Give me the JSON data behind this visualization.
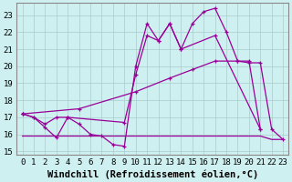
{
  "background_color": "#cff0f0",
  "grid_color": "#aacccc",
  "line_color": "#990099",
  "xlabel": "Windchill (Refroidissement éolien,°C)",
  "xlim_min": -0.5,
  "xlim_max": 23.5,
  "ylim_min": 14.8,
  "ylim_max": 23.7,
  "yticks": [
    15,
    16,
    17,
    18,
    19,
    20,
    21,
    22,
    23
  ],
  "xticks": [
    0,
    1,
    2,
    3,
    4,
    5,
    6,
    7,
    8,
    9,
    10,
    11,
    12,
    13,
    14,
    15,
    16,
    17,
    18,
    19,
    20,
    21,
    22,
    23
  ],
  "series1_x": [
    0,
    1,
    2,
    3,
    4,
    5,
    6,
    7,
    8,
    9,
    10,
    11,
    12,
    13,
    14,
    15,
    16,
    17,
    18,
    19,
    20,
    21
  ],
  "series1_y": [
    17.2,
    17.0,
    16.4,
    15.8,
    17.0,
    16.6,
    16.0,
    15.9,
    15.4,
    15.3,
    20.0,
    22.5,
    21.5,
    22.5,
    21.0,
    22.5,
    23.2,
    23.4,
    22.0,
    20.3,
    20.3,
    16.3
  ],
  "series2_x": [
    0,
    1,
    2,
    3,
    4,
    9,
    10,
    11,
    12,
    13,
    14,
    17,
    21
  ],
  "series2_y": [
    17.2,
    17.0,
    16.6,
    17.0,
    17.0,
    16.7,
    19.5,
    21.8,
    21.5,
    22.5,
    21.0,
    21.8,
    16.3
  ],
  "series3_x": [
    0,
    1,
    2,
    3,
    4,
    5,
    6,
    7,
    8,
    9,
    10,
    11,
    12,
    13,
    14,
    15,
    16,
    17,
    18,
    19,
    20,
    21,
    22,
    23
  ],
  "series3_y": [
    15.9,
    15.9,
    15.9,
    15.9,
    15.9,
    15.9,
    15.9,
    15.9,
    15.9,
    15.9,
    15.9,
    15.9,
    15.9,
    15.9,
    15.9,
    15.9,
    15.9,
    15.9,
    15.9,
    15.9,
    15.9,
    15.9,
    15.7,
    15.7
  ],
  "series4_x": [
    0,
    5,
    10,
    13,
    15,
    17,
    19,
    20,
    21,
    22,
    23
  ],
  "series4_y": [
    17.2,
    17.5,
    18.5,
    19.3,
    19.8,
    20.3,
    20.3,
    20.2,
    20.2,
    16.3,
    15.7
  ],
  "font_family": "monospace",
  "xlabel_fontsize": 7.5,
  "tick_fontsize": 6.5,
  "lw": 0.9,
  "ms": 3.0
}
